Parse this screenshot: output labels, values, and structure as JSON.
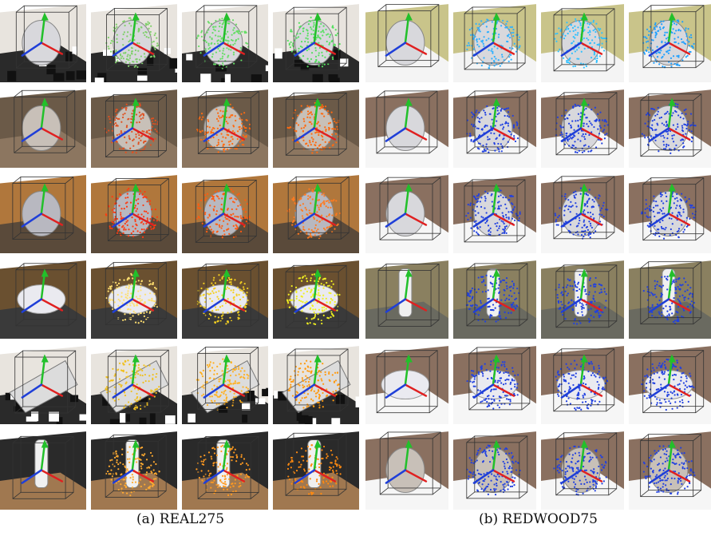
{
  "figure": {
    "caption_a": "(a) REAL275",
    "caption_b": "(b) REDWOOD75"
  },
  "colors": {
    "highlight": "#3f9b3a",
    "axis_x": "#e02020",
    "axis_y": "#22c02a",
    "axis_z": "#1f3fd8",
    "bbox": "#333333"
  },
  "panel_a": {
    "rows": [
      {
        "object": "mug",
        "scene": "marker-board",
        "points": [
          "none",
          "#7fd06a",
          "#66dd66",
          "#55e060"
        ],
        "highlighted": [
          false,
          true,
          true,
          false
        ]
      },
      {
        "object": "can",
        "scene": "carpet",
        "points": [
          "none",
          "#e05020",
          "#ff6a10",
          "#ff6a10"
        ],
        "highlighted": [
          false,
          false,
          true,
          false
        ]
      },
      {
        "object": "camera",
        "scene": "floor",
        "points": [
          "none",
          "#ff3a10",
          "#ff5a10",
          "#ff7a20"
        ],
        "highlighted": [
          false,
          false,
          false,
          false
        ]
      },
      {
        "object": "bowl",
        "scene": "table",
        "points": [
          "none",
          "#ffe070",
          "#f4d020",
          "#f0f020"
        ],
        "highlighted": [
          false,
          true,
          true,
          false
        ]
      },
      {
        "object": "laptop",
        "scene": "marker-board",
        "points": [
          "none",
          "#f0c020",
          "#ffb020",
          "#ff9a10"
        ],
        "highlighted": [
          false,
          false,
          false,
          true
        ]
      },
      {
        "object": "bottle",
        "scene": "desk",
        "points": [
          "none",
          "#ffaa30",
          "#ff9a20",
          "#ff8a10"
        ],
        "highlighted": [
          false,
          false,
          true,
          true
        ]
      }
    ]
  },
  "panel_b": {
    "rows": [
      {
        "object": "mug",
        "scene": "bright-room",
        "points": [
          "none",
          "#2fb0ff",
          "#2fc0ff",
          "#1fa0ff"
        ],
        "highlighted": [
          false,
          false,
          false,
          false
        ]
      },
      {
        "object": "mug",
        "scene": "hand-held",
        "points": [
          "none",
          "#2040e0",
          "#2040e0",
          "#2040e0"
        ],
        "highlighted": [
          false,
          false,
          false,
          false
        ]
      },
      {
        "object": "mug",
        "scene": "hand-held",
        "points": [
          "none",
          "#2040e0",
          "#2040e0",
          "#2040e0"
        ],
        "highlighted": [
          false,
          false,
          false,
          false
        ]
      },
      {
        "object": "bottle",
        "scene": "living-room",
        "points": [
          "none",
          "#2040e0",
          "#2040e0",
          "#2040e0"
        ],
        "highlighted": [
          false,
          false,
          true,
          false
        ]
      },
      {
        "object": "bowl",
        "scene": "hand-held",
        "points": [
          "none",
          "#2040e0",
          "#2040e0",
          "#2040e0"
        ],
        "highlighted": [
          false,
          false,
          false,
          false
        ]
      },
      {
        "object": "can",
        "scene": "hand-held",
        "points": [
          "none",
          "#2040e0",
          "#2040e0",
          "#2040e0"
        ],
        "highlighted": [
          false,
          false,
          false,
          false
        ]
      }
    ]
  }
}
